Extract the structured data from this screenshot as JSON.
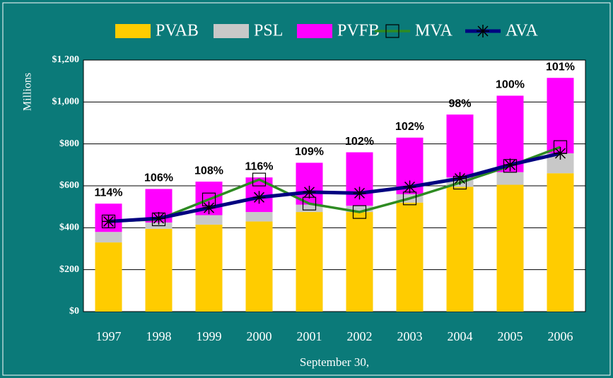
{
  "chart_data": {
    "type": "stacked-bar-line",
    "categories": [
      "1997",
      "1998",
      "1999",
      "2000",
      "2001",
      "2002",
      "2003",
      "2004",
      "2005",
      "2006"
    ],
    "series": [
      {
        "name": "PVAB",
        "color": "#ffcc00",
        "kind": "bar",
        "values": [
          330,
          395,
          415,
          430,
          475,
          475,
          520,
          595,
          605,
          660
        ]
      },
      {
        "name": "PSL",
        "color": "#c8c8c8",
        "kind": "bar",
        "values": [
          50,
          30,
          45,
          45,
          35,
          30,
          40,
          45,
          60,
          95
        ]
      },
      {
        "name": "PVFB",
        "color": "#ff00ff",
        "kind": "bar",
        "values": [
          135,
          160,
          160,
          165,
          200,
          255,
          270,
          300,
          365,
          360
        ]
      },
      {
        "name": "MVA",
        "color": "#2e8b22",
        "kind": "line",
        "marker": "square",
        "values": [
          430,
          440,
          535,
          630,
          515,
          475,
          540,
          615,
          695,
          785
        ]
      },
      {
        "name": "AVA",
        "color": "#000080",
        "kind": "line",
        "marker": "star",
        "values": [
          430,
          445,
          495,
          545,
          570,
          565,
          595,
          635,
          700,
          755
        ]
      }
    ],
    "ratios": {
      "values": [
        114,
        106,
        108,
        116,
        109,
        102,
        102,
        98,
        100,
        101
      ],
      "value_labels": [
        "114%",
        "106%",
        "108%",
        "116%",
        "109%",
        "102%",
        "102%",
        "98%",
        "100%",
        "101%"
      ]
    },
    "ylabel": "Millions",
    "xlabel": "September 30,",
    "ylim": [
      0,
      1200
    ],
    "yticks": [
      {
        "value": 0,
        "label": "$0"
      },
      {
        "value": 200,
        "label": "$200"
      },
      {
        "value": 400,
        "label": "$400"
      },
      {
        "value": 600,
        "label": "$600"
      },
      {
        "value": 800,
        "label": "$800"
      },
      {
        "value": 1000,
        "label": "$1,000"
      },
      {
        "value": 1200,
        "label": "$1,200"
      }
    ],
    "grid": true,
    "legend": "top"
  }
}
